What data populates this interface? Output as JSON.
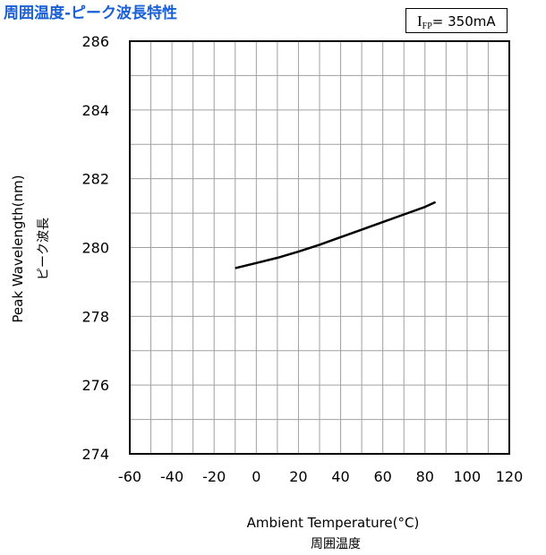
{
  "title": "周囲温度-ピーク波長特性",
  "condition": {
    "symbol": "I",
    "subscript": "FP",
    "value": "= 350mA"
  },
  "chart_data": {
    "type": "line",
    "title": "周囲温度-ピーク波長特性",
    "xlabel": "Ambient Temperature(°C)",
    "xlabel_jp": "周囲温度",
    "ylabel": "Peak Wavelength(nm)",
    "ylabel_jp": "ピーク波長",
    "xlim": [
      -60,
      120
    ],
    "ylim": [
      274,
      286
    ],
    "x_ticks": [
      -60,
      -40,
      -20,
      0,
      20,
      40,
      60,
      80,
      100,
      120
    ],
    "y_ticks": [
      274,
      276,
      278,
      280,
      282,
      284,
      286
    ],
    "x_grid_step": 10,
    "y_grid_step": 1,
    "grid": true,
    "series": [
      {
        "x": [
          -10,
          0,
          10,
          20,
          30,
          40,
          50,
          60,
          70,
          80,
          85
        ],
        "y": [
          279.4,
          279.55,
          279.7,
          279.88,
          280.08,
          280.3,
          280.52,
          280.74,
          280.96,
          281.18,
          281.32
        ]
      }
    ]
  }
}
